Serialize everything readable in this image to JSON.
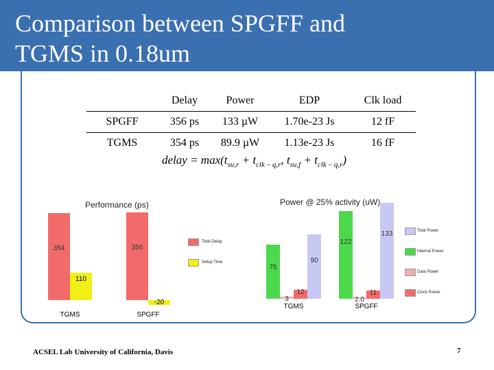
{
  "slide": {
    "title_line1": "Comparison between SPGFF and",
    "title_line2": "TGMS in 0.18um",
    "footer": "ACSEL Lab University of California, Davis",
    "page_number": "7",
    "theme_color": "#3a6fb0"
  },
  "table": {
    "columns": [
      "",
      "Delay",
      "Power",
      "EDP",
      "Clk load"
    ],
    "rows": [
      [
        "SPGFF",
        "356 ps",
        "133 µW",
        "1.70e-23 Js",
        "12 fF"
      ],
      [
        "TGMS",
        "354 ps",
        "89.9 µW",
        "1.13e-23 Js",
        "16 fF"
      ]
    ]
  },
  "formula": {
    "lhs": "delay = max(",
    "t1": "t",
    "t1_sub": "su,r",
    "t2": "t",
    "t2_sub": "clk – q,r",
    "t3": "t",
    "t3_sub": "su,f",
    "t4": "t",
    "t4_sub": "clk – q,r",
    "close": ")"
  },
  "chart_data": [
    {
      "type": "bar",
      "title": "Performance (ps)",
      "categories": [
        "TGMS",
        "SPGFF"
      ],
      "series": [
        {
          "name": "Total Delay",
          "color": "#f26b6b",
          "values": [
            354,
            356
          ],
          "labels": [
            "354",
            "356"
          ]
        },
        {
          "name": "Setup Time",
          "color": "#f0f014",
          "values": [
            110,
            -20
          ],
          "labels": [
            "110",
            "-20"
          ]
        }
      ],
      "legend": "right"
    },
    {
      "type": "bar",
      "title": "Power @ 25% activity (uW)",
      "categories": [
        "TGMS",
        "SPGFF"
      ],
      "series": [
        {
          "name": "Clock Power",
          "color": "#f26b6b",
          "values": [
            12,
            11
          ],
          "labels": [
            "12",
            "11"
          ]
        },
        {
          "name": "Data Power",
          "color": "#f0b0b0",
          "values": [
            3,
            2
          ],
          "labels": [
            "3",
            "2.0"
          ]
        },
        {
          "name": "Internal Power",
          "color": "#4cd94c",
          "values": [
            75,
            122
          ],
          "labels": [
            "75",
            "122"
          ]
        },
        {
          "name": "Total Power",
          "color": "#c8c8f4",
          "values": [
            90,
            133
          ],
          "labels": [
            "90",
            "133"
          ]
        }
      ],
      "legend": "right"
    }
  ]
}
